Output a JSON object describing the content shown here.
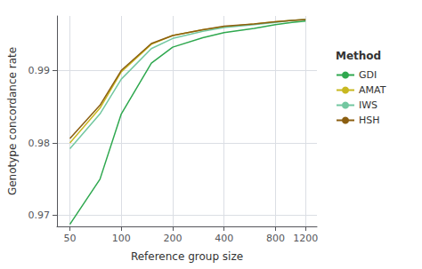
{
  "chart_data": {
    "type": "line",
    "xlabel": "Reference group size",
    "ylabel": "Genotype concordance rate",
    "legend_title": "Method",
    "x": [
      50,
      75,
      100,
      150,
      200,
      300,
      400,
      600,
      800,
      1000,
      1200
    ],
    "series": [
      {
        "name": "GDI",
        "color": "#2fa84f",
        "values": [
          0.9688,
          0.975,
          0.984,
          0.991,
          0.9932,
          0.9945,
          0.9952,
          0.9958,
          0.9963,
          0.9966,
          0.9968
        ]
      },
      {
        "name": "AMAT",
        "color": "#c8b820",
        "values": [
          0.98,
          0.9848,
          0.9898,
          0.9936,
          0.9948,
          0.9956,
          0.996,
          0.9964,
          0.9967,
          0.9969,
          0.997
        ]
      },
      {
        "name": "IWS",
        "color": "#72c7a0",
        "values": [
          0.9792,
          0.984,
          0.9888,
          0.993,
          0.9944,
          0.9954,
          0.9959,
          0.9963,
          0.9966,
          0.9969,
          0.997
        ]
      },
      {
        "name": "HSH",
        "color": "#8b5e10",
        "values": [
          0.9806,
          0.9852,
          0.99,
          0.9937,
          0.9948,
          0.9956,
          0.9961,
          0.9964,
          0.9967,
          0.9969,
          0.997
        ]
      }
    ],
    "log": "x",
    "xlim": [
      42,
      1400
    ],
    "xticks": [
      50,
      100,
      200,
      400,
      800,
      1200
    ],
    "ylim": [
      0.9685,
      0.9975
    ],
    "yticks": [
      0.97,
      0.98,
      0.99
    ],
    "grid": true,
    "legend": "right"
  }
}
